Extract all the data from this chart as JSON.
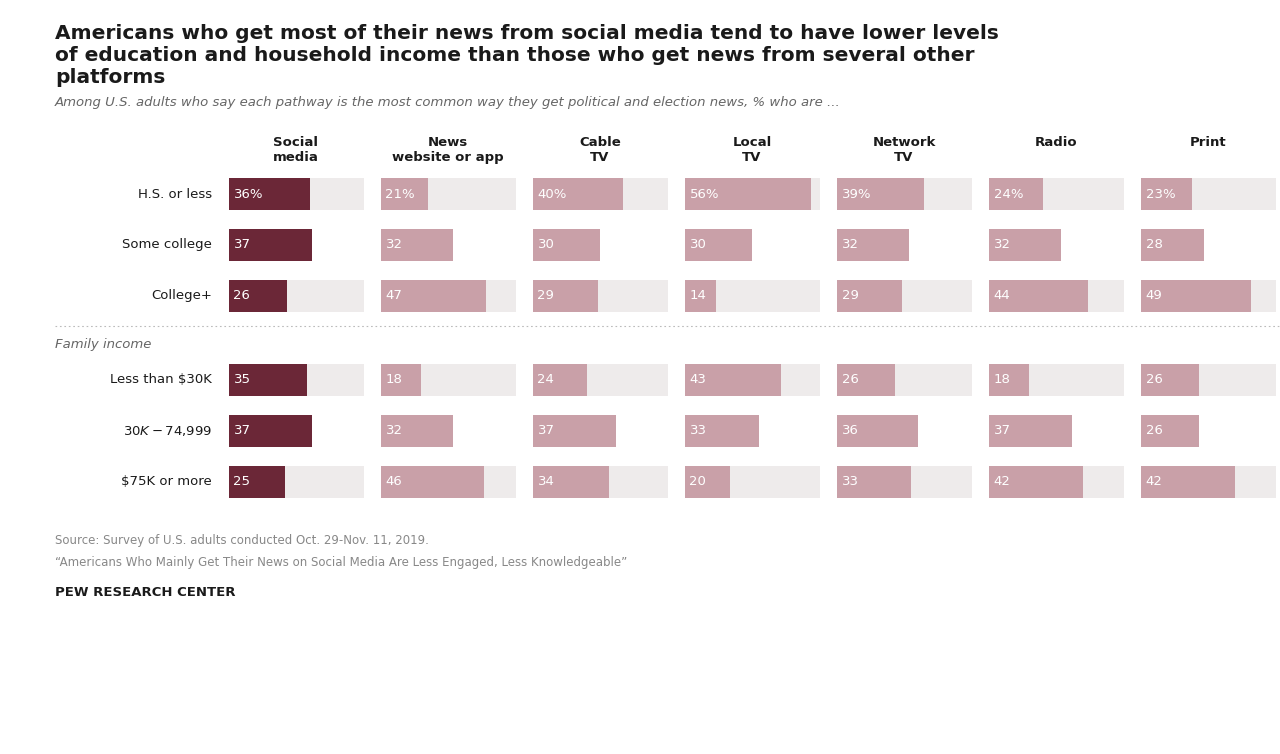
{
  "title": "Americans who get most of their news from social media tend to have lower levels\nof education and household income than those who get news from several other\nplatforms",
  "subtitle": "Among U.S. adults who say each pathway is the most common way they get political and election news, % who are ...",
  "columns": [
    "Social\nmedia",
    "News\nwebsite or app",
    "Cable\nTV",
    "Local\nTV",
    "Network\nTV",
    "Radio",
    "Print"
  ],
  "rows_edu": [
    {
      "label": "H.S. or less",
      "values": [
        36,
        21,
        40,
        56,
        39,
        24,
        23
      ],
      "pct_label": [
        "36%",
        "21%",
        "40%",
        "56%",
        "39%",
        "24%",
        "23%"
      ]
    },
    {
      "label": "Some college",
      "values": [
        37,
        32,
        30,
        30,
        32,
        32,
        28
      ],
      "pct_label": [
        "37",
        "32",
        "30",
        "30",
        "32",
        "32",
        "28"
      ]
    },
    {
      "label": "College+",
      "values": [
        26,
        47,
        29,
        14,
        29,
        44,
        49
      ],
      "pct_label": [
        "26",
        "47",
        "29",
        "14",
        "29",
        "44",
        "49"
      ]
    }
  ],
  "section2_label": "Family income",
  "rows_inc": [
    {
      "label": "Less than $30K",
      "values": [
        35,
        18,
        24,
        43,
        26,
        18,
        26
      ],
      "pct_label": [
        "35",
        "18",
        "24",
        "43",
        "26",
        "18",
        "26"
      ]
    },
    {
      "label": "$30K-$74,999",
      "values": [
        37,
        32,
        37,
        33,
        36,
        37,
        26
      ],
      "pct_label": [
        "37",
        "32",
        "37",
        "33",
        "36",
        "37",
        "26"
      ]
    },
    {
      "label": "$75K or more",
      "values": [
        25,
        46,
        34,
        20,
        33,
        42,
        42
      ],
      "pct_label": [
        "25",
        "46",
        "34",
        "20",
        "33",
        "42",
        "42"
      ]
    }
  ],
  "color_dark": "#6b2737",
  "color_light": "#c9a0a8",
  "color_bg_row": "#eeebeb",
  "color_bg_white": "#ffffff",
  "source_text1": "Source: Survey of U.S. adults conducted Oct. 29-Nov. 11, 2019.",
  "source_text2": "“Americans Who Mainly Get Their News on Social Media Are Less Engaged, Less Knowledgeable”",
  "footer": "PEW RESEARCH CENTER",
  "bg_color": "#ffffff"
}
